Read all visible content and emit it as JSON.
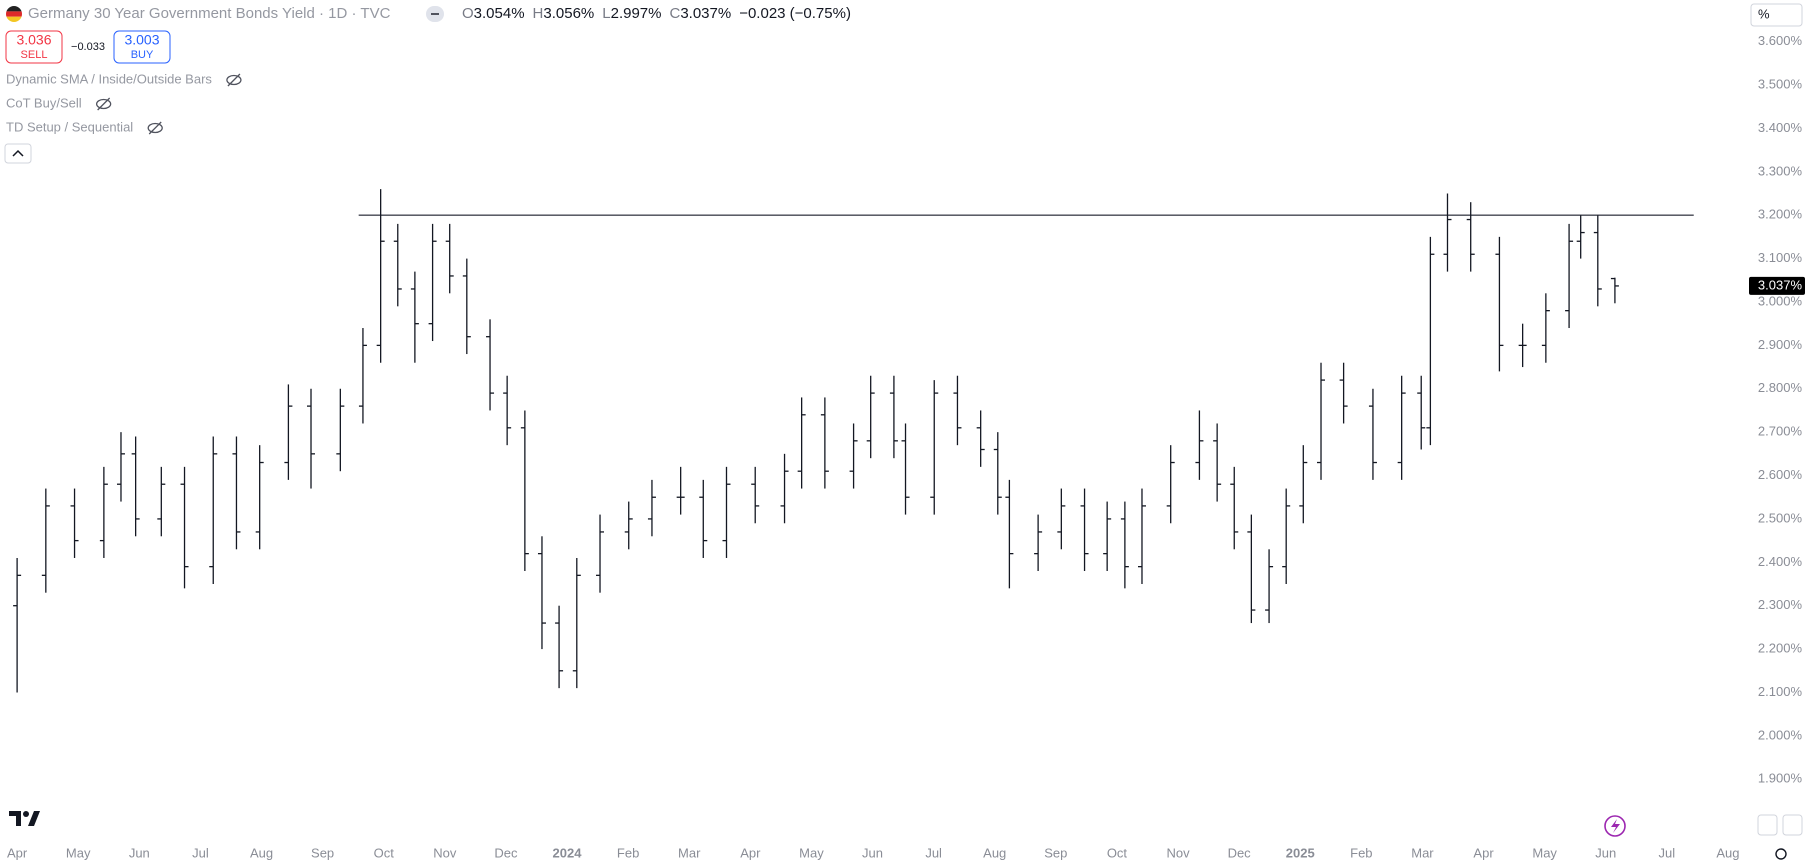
{
  "chart_data": {
    "type": "ohlc",
    "title": "Germany 30 Year Government Bonds Yield · 1D · TVC",
    "ohlc_labels": [
      {
        "key": "O",
        "value": "3.054%"
      },
      {
        "key": "H",
        "value": "3.056%"
      },
      {
        "key": "L",
        "value": "2.997%"
      },
      {
        "key": "C",
        "value": "3.037%"
      }
    ],
    "change": "−0.023 (−0.75%)",
    "sell": {
      "price": "3.036",
      "label": "SELL"
    },
    "spread": "−0.033",
    "buy": {
      "price": "3.003",
      "label": "BUY"
    },
    "indicators": [
      "Dynamic SMA / Inside/Outside Bars",
      "CoT Buy/Sell",
      "TD Setup / Sequential"
    ],
    "unit_button": "%",
    "color": "#131722",
    "x": [
      0,
      0.47,
      0.94,
      1.42,
      1.7,
      1.94,
      2.36,
      2.74,
      3.21,
      3.59,
      3.97,
      4.44,
      4.81,
      5.29,
      5.66,
      5.95,
      6.23,
      6.51,
      6.8,
      7.08,
      7.36,
      7.74,
      8.02,
      8.31,
      8.59,
      8.87,
      9.16,
      9.54,
      10.01,
      10.39,
      10.86,
      11.23,
      11.61,
      12.08,
      12.56,
      12.84,
      13.22,
      13.69,
      13.97,
      14.35,
      14.54,
      15.01,
      15.39,
      15.77,
      16.05,
      16.24,
      16.71,
      17.09,
      17.47,
      17.84,
      18.13,
      18.41,
      18.88,
      19.35,
      19.64,
      19.92,
      20.2,
      20.49,
      20.77,
      21.05,
      21.34,
      21.71,
      22.19,
      22.66,
      22.98,
      23.13,
      23.41,
      23.79,
      24.26,
      24.64,
      25.02,
      25.4,
      25.59,
      25.87,
      26.15
    ],
    "open": [
      2.3,
      2.37,
      2.53,
      2.45,
      2.58,
      2.65,
      2.5,
      2.58,
      2.39,
      2.65,
      2.47,
      2.63,
      2.76,
      2.65,
      2.76,
      2.9,
      3.14,
      3.03,
      2.95,
      3.14,
      3.06,
      2.92,
      2.79,
      2.71,
      2.42,
      2.26,
      2.15,
      2.37,
      2.47,
      2.5,
      2.55,
      2.55,
      2.45,
      2.58,
      2.53,
      2.61,
      2.74,
      2.61,
      2.68,
      2.79,
      2.68,
      2.55,
      2.79,
      2.71,
      2.66,
      2.55,
      2.42,
      2.47,
      2.53,
      2.42,
      2.5,
      2.39,
      2.53,
      2.63,
      2.68,
      2.58,
      2.47,
      2.29,
      2.39,
      2.53,
      2.63,
      2.82,
      2.76,
      2.63,
      2.79,
      2.71,
      3.11,
      3.19,
      3.11,
      2.9,
      2.9,
      2.98,
      3.14,
      3.16,
      3.054
    ],
    "high": [
      2.41,
      2.57,
      2.57,
      2.62,
      2.7,
      2.69,
      2.62,
      2.62,
      2.69,
      2.69,
      2.67,
      2.81,
      2.8,
      2.8,
      2.94,
      3.26,
      3.18,
      3.07,
      3.18,
      3.18,
      3.1,
      2.96,
      2.83,
      2.75,
      2.46,
      2.3,
      2.41,
      2.51,
      2.54,
      2.59,
      2.62,
      2.59,
      2.62,
      2.62,
      2.65,
      2.78,
      2.78,
      2.72,
      2.83,
      2.83,
      2.72,
      2.82,
      2.83,
      2.75,
      2.7,
      2.59,
      2.51,
      2.57,
      2.57,
      2.54,
      2.54,
      2.57,
      2.67,
      2.75,
      2.72,
      2.62,
      2.51,
      2.43,
      2.57,
      2.67,
      2.86,
      2.86,
      2.8,
      2.83,
      2.83,
      3.15,
      3.25,
      3.23,
      3.15,
      2.95,
      3.02,
      3.18,
      3.2,
      3.2,
      3.056
    ],
    "low": [
      2.1,
      2.33,
      2.41,
      2.41,
      2.54,
      2.46,
      2.46,
      2.34,
      2.35,
      2.43,
      2.43,
      2.59,
      2.57,
      2.61,
      2.72,
      2.86,
      2.99,
      2.86,
      2.91,
      3.02,
      2.88,
      2.75,
      2.67,
      2.38,
      2.2,
      2.11,
      2.11,
      2.33,
      2.43,
      2.46,
      2.51,
      2.41,
      2.41,
      2.49,
      2.49,
      2.57,
      2.57,
      2.57,
      2.64,
      2.64,
      2.51,
      2.51,
      2.67,
      2.62,
      2.51,
      2.34,
      2.38,
      2.43,
      2.38,
      2.38,
      2.34,
      2.35,
      2.49,
      2.59,
      2.54,
      2.43,
      2.26,
      2.26,
      2.35,
      2.49,
      2.59,
      2.72,
      2.59,
      2.59,
      2.66,
      2.67,
      3.07,
      3.07,
      2.84,
      2.85,
      2.86,
      2.94,
      3.1,
      2.99,
      2.997
    ],
    "close": [
      2.37,
      2.53,
      2.45,
      2.58,
      2.65,
      2.5,
      2.58,
      2.39,
      2.65,
      2.47,
      2.63,
      2.76,
      2.65,
      2.76,
      2.9,
      3.14,
      3.03,
      2.95,
      3.14,
      3.06,
      2.92,
      2.79,
      2.71,
      2.42,
      2.26,
      2.15,
      2.37,
      2.47,
      2.5,
      2.55,
      2.55,
      2.45,
      2.58,
      2.53,
      2.61,
      2.74,
      2.61,
      2.68,
      2.79,
      2.68,
      2.55,
      2.79,
      2.71,
      2.66,
      2.55,
      2.42,
      2.47,
      2.53,
      2.42,
      2.5,
      2.39,
      2.53,
      2.63,
      2.68,
      2.58,
      2.47,
      2.29,
      2.39,
      2.53,
      2.63,
      2.82,
      2.76,
      2.63,
      2.79,
      2.71,
      3.11,
      3.19,
      3.11,
      2.9,
      2.9,
      2.98,
      3.14,
      3.16,
      3.03,
      3.037
    ],
    "hline": {
      "value": 3.2,
      "x": [
        5.59,
        27.44
      ],
      "color": "#434651"
    },
    "last_price": {
      "value": 3.037,
      "label": "3.037%"
    },
    "xlim": [
      -0.28,
      28.23
    ],
    "xticks": [
      {
        "value": 0,
        "label": "Apr"
      },
      {
        "value": 1,
        "label": "May"
      },
      {
        "value": 2,
        "label": "Jun"
      },
      {
        "value": 3,
        "label": "Jul"
      },
      {
        "value": 4,
        "label": "Aug"
      },
      {
        "value": 5,
        "label": "Sep"
      },
      {
        "value": 6,
        "label": "Oct"
      },
      {
        "value": 7,
        "label": "Nov"
      },
      {
        "value": 8,
        "label": "Dec"
      },
      {
        "value": 9,
        "label": "2024"
      },
      {
        "value": 10,
        "label": "Feb"
      },
      {
        "value": 11,
        "label": "Mar"
      },
      {
        "value": 12,
        "label": "Apr"
      },
      {
        "value": 13,
        "label": "May"
      },
      {
        "value": 14,
        "label": "Jun"
      },
      {
        "value": 15,
        "label": "Jul"
      },
      {
        "value": 16,
        "label": "Aug"
      },
      {
        "value": 17,
        "label": "Sep"
      },
      {
        "value": 18,
        "label": "Oct"
      },
      {
        "value": 19,
        "label": "Nov"
      },
      {
        "value": 20,
        "label": "Dec"
      },
      {
        "value": 21,
        "label": "2025"
      },
      {
        "value": 22,
        "label": "Feb"
      },
      {
        "value": 23,
        "label": "Mar"
      },
      {
        "value": 24,
        "label": "Apr"
      },
      {
        "value": 25,
        "label": "May"
      },
      {
        "value": 26,
        "label": "Jun"
      },
      {
        "value": 27,
        "label": "Jul"
      },
      {
        "value": 28,
        "label": "Aug"
      }
    ],
    "ylim": [
      1.76,
      3.696
    ],
    "yticks": [
      {
        "value": 3.6,
        "label": "3.600%"
      },
      {
        "value": 3.5,
        "label": "3.500%"
      },
      {
        "value": 3.4,
        "label": "3.400%"
      },
      {
        "value": 3.3,
        "label": "3.300%"
      },
      {
        "value": 3.2,
        "label": "3.200%"
      },
      {
        "value": 3.1,
        "label": "3.100%"
      },
      {
        "value": 3.0,
        "label": "3.000%"
      },
      {
        "value": 2.9,
        "label": "2.900%"
      },
      {
        "value": 2.8,
        "label": "2.800%"
      },
      {
        "value": 2.7,
        "label": "2.700%"
      },
      {
        "value": 2.6,
        "label": "2.600%"
      },
      {
        "value": 2.5,
        "label": "2.500%"
      },
      {
        "value": 2.4,
        "label": "2.400%"
      },
      {
        "value": 2.3,
        "label": "2.300%"
      },
      {
        "value": 2.2,
        "label": "2.200%"
      },
      {
        "value": 2.1,
        "label": "2.100%"
      },
      {
        "value": 2.0,
        "label": "2.000%"
      },
      {
        "value": 1.9,
        "label": "1.900%"
      }
    ],
    "grid": false
  }
}
